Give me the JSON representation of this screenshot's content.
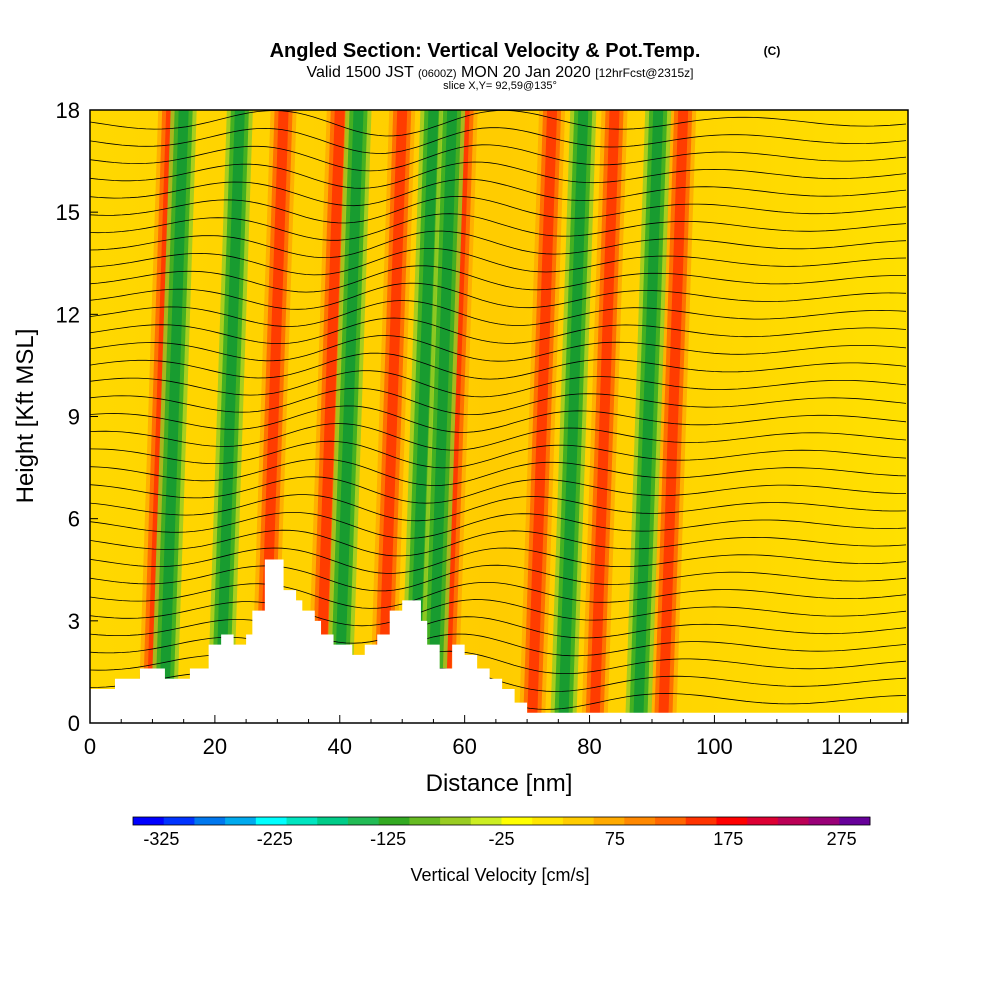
{
  "header": {
    "title": "Angled Section: Vertical Velocity & Pot.Temp.",
    "copyright": "(C)",
    "valid_prefix": "Valid 1500 JST",
    "valid_utc": "(0600Z)",
    "valid_date": "MON 20 Jan 2020",
    "forecast": "[12hrFcst@2315z]",
    "slice": "slice X,Y= 92,59@135°"
  },
  "chart_data": {
    "type": "heatmap",
    "xlabel": "Distance [nm]",
    "ylabel": "Height [Kft MSL]",
    "xlim": [
      0,
      131
    ],
    "ylim": [
      0,
      18
    ],
    "x_ticks": [
      0,
      20,
      40,
      60,
      80,
      100,
      120
    ],
    "y_ticks": [
      0,
      3,
      6,
      9,
      12,
      15,
      18
    ],
    "field": "Vertical Velocity",
    "contour_field": "Potential Temperature",
    "colorbar": {
      "label": "Vertical Velocity [cm/s]",
      "tick_labels": [
        "-325",
        "-225",
        "-125",
        "-25",
        "75",
        "175",
        "275"
      ],
      "tick_values": [
        -325,
        -225,
        -125,
        -25,
        75,
        175,
        275
      ],
      "min": -350,
      "max": 300,
      "colors": [
        "#0000ff",
        "#0033ff",
        "#0077ee",
        "#00aaee",
        "#00ffff",
        "#00e5c0",
        "#00cc88",
        "#22bb55",
        "#33aa22",
        "#66bb22",
        "#99cc22",
        "#ccee22",
        "#ffff00",
        "#ffe600",
        "#ffcc00",
        "#ffaa00",
        "#ff8800",
        "#ff6600",
        "#ff3300",
        "#ff0000",
        "#dd0033",
        "#bb0055",
        "#990077",
        "#660099"
      ]
    },
    "updraft_bands_x": [
      13,
      31,
      40,
      50,
      60,
      74,
      84,
      95
    ],
    "downdraft_bands_x": [
      15,
      24,
      43,
      55,
      58,
      79,
      91
    ],
    "terrain_profile": {
      "x": [
        0,
        4,
        4,
        8,
        8,
        12,
        12,
        16,
        16,
        19,
        19,
        21,
        21,
        23,
        23,
        25,
        25,
        26,
        26,
        28,
        28,
        31,
        31,
        33,
        33,
        34,
        34,
        36,
        36,
        37,
        37,
        39,
        39,
        42,
        42,
        44,
        44,
        46,
        46,
        48,
        48,
        50,
        50,
        53,
        53,
        54,
        54,
        56,
        56,
        58,
        58,
        60,
        60,
        62,
        62,
        64,
        64,
        66,
        66,
        68,
        68,
        70,
        70,
        131
      ],
      "kft": [
        1.0,
        1.0,
        1.3,
        1.3,
        1.6,
        1.6,
        1.3,
        1.3,
        1.6,
        1.6,
        2.3,
        2.3,
        2.6,
        2.6,
        2.3,
        2.3,
        2.6,
        2.6,
        3.3,
        3.3,
        4.8,
        4.8,
        3.9,
        3.9,
        3.6,
        3.6,
        3.3,
        3.3,
        3.0,
        3.0,
        2.6,
        2.6,
        2.3,
        2.3,
        2.0,
        2.0,
        2.3,
        2.3,
        2.6,
        2.6,
        3.3,
        3.3,
        3.6,
        3.6,
        3.0,
        3.0,
        2.3,
        2.3,
        1.6,
        1.6,
        2.3,
        2.3,
        2.0,
        2.0,
        1.6,
        1.6,
        1.3,
        1.3,
        1.0,
        1.0,
        0.6,
        0.6,
        0.3,
        0.3
      ]
    }
  }
}
